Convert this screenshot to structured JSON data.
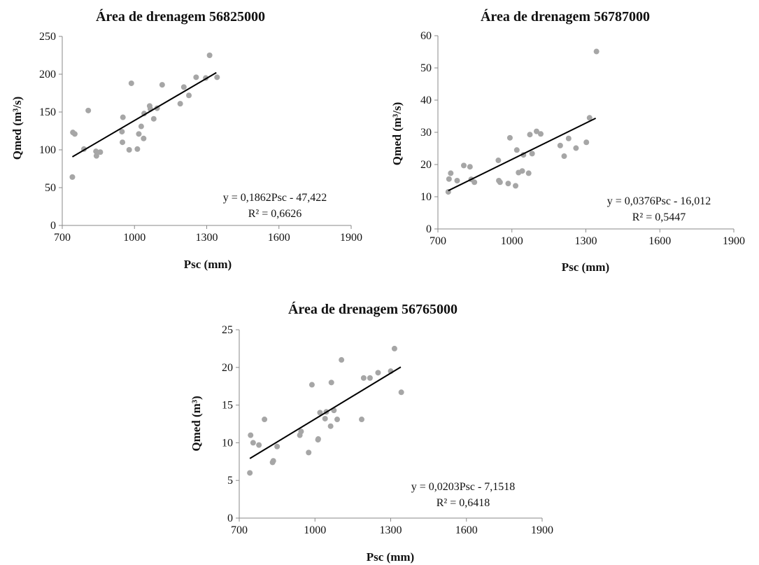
{
  "chart_data": [
    {
      "type": "scatter",
      "title": "Área de drenagem 56825000",
      "xlabel": "Psc (mm)",
      "ylabel": "Qmed (m³/s)",
      "xlim": [
        700,
        1900
      ],
      "ylim": [
        0,
        250
      ],
      "xticks": [
        "700",
        "1000",
        "1300",
        "1600",
        "1900"
      ],
      "yticks": [
        "0",
        "50",
        "100",
        "150",
        "200",
        "250"
      ],
      "grid": false,
      "trendline": {
        "slope": 0.1862,
        "intercept": -47.422,
        "x_range": [
          742,
          1340
        ]
      },
      "equation": "y = 0,1862Psc - 47,422",
      "r2": "R² = 0,6626",
      "points": [
        [
          742,
          64
        ],
        [
          744,
          123
        ],
        [
          752,
          121
        ],
        [
          790,
          101
        ],
        [
          808,
          152
        ],
        [
          840,
          98
        ],
        [
          842,
          92
        ],
        [
          858,
          97
        ],
        [
          948,
          124
        ],
        [
          950,
          110
        ],
        [
          952,
          143
        ],
        [
          978,
          100
        ],
        [
          987,
          188
        ],
        [
          1012,
          101
        ],
        [
          1018,
          121
        ],
        [
          1028,
          131
        ],
        [
          1038,
          115
        ],
        [
          1040,
          148
        ],
        [
          1063,
          158
        ],
        [
          1066,
          154
        ],
        [
          1080,
          141
        ],
        [
          1094,
          155
        ],
        [
          1115,
          186
        ],
        [
          1190,
          161
        ],
        [
          1205,
          183
        ],
        [
          1226,
          172
        ],
        [
          1256,
          196
        ],
        [
          1296,
          195
        ],
        [
          1312,
          225
        ],
        [
          1343,
          196
        ]
      ]
    },
    {
      "type": "scatter",
      "title": "Área de drenagem 56787000",
      "xlabel": "Psc (mm)",
      "ylabel": "Qmed (m³/s)",
      "xlim": [
        700,
        1900
      ],
      "ylim": [
        0,
        60
      ],
      "xticks": [
        "700",
        "1000",
        "1300",
        "1600",
        "1900"
      ],
      "yticks": [
        "0",
        "10",
        "20",
        "30",
        "40",
        "50",
        "60"
      ],
      "grid": false,
      "trendline": {
        "slope": 0.0376,
        "intercept": -16.012,
        "x_range": [
          742,
          1340
        ]
      },
      "equation": "y = 0,0376Psc - 16,012",
      "r2": "R² = 0,5447",
      "points": [
        [
          742,
          11.5
        ],
        [
          745,
          15.5
        ],
        [
          752,
          17.3
        ],
        [
          778,
          15
        ],
        [
          805,
          19.7
        ],
        [
          830,
          19.3
        ],
        [
          835,
          15.4
        ],
        [
          848,
          14.5
        ],
        [
          945,
          21.3
        ],
        [
          947,
          15
        ],
        [
          952,
          14.5
        ],
        [
          985,
          14.1
        ],
        [
          992,
          28.3
        ],
        [
          1015,
          13.4
        ],
        [
          1020,
          24.5
        ],
        [
          1027,
          17.5
        ],
        [
          1042,
          18
        ],
        [
          1047,
          23
        ],
        [
          1068,
          17.3
        ],
        [
          1073,
          29.3
        ],
        [
          1082,
          23.4
        ],
        [
          1100,
          30.3
        ],
        [
          1117,
          29.5
        ],
        [
          1196,
          25.9
        ],
        [
          1212,
          22.6
        ],
        [
          1230,
          28.1
        ],
        [
          1260,
          25.1
        ],
        [
          1302,
          26.9
        ],
        [
          1315,
          34.5
        ],
        [
          1343,
          55.1
        ]
      ]
    },
    {
      "type": "scatter",
      "title": "Área de drenagem 56765000",
      "xlabel": "Psc (mm)",
      "ylabel": "Qmed (m³)",
      "xlim": [
        700,
        1900
      ],
      "ylim": [
        0,
        25
      ],
      "xticks": [
        "700",
        "1000",
        "1300",
        "1600",
        "1900"
      ],
      "yticks": [
        "0",
        "5",
        "10",
        "15",
        "20",
        "25"
      ],
      "grid": false,
      "trendline": {
        "slope": 0.0203,
        "intercept": -7.1518,
        "x_range": [
          742,
          1340
        ]
      },
      "equation": "y = 0,0203Psc - 7,1518",
      "r2": "R² = 0,6418",
      "points": [
        [
          742,
          6
        ],
        [
          745,
          11
        ],
        [
          755,
          10
        ],
        [
          778,
          9.7
        ],
        [
          800,
          13.1
        ],
        [
          832,
          7.4
        ],
        [
          835,
          7.6
        ],
        [
          850,
          9.5
        ],
        [
          940,
          11
        ],
        [
          945,
          11.5
        ],
        [
          975,
          8.7
        ],
        [
          988,
          17.7
        ],
        [
          1012,
          10.4
        ],
        [
          1013,
          10.5
        ],
        [
          1020,
          14
        ],
        [
          1040,
          13.2
        ],
        [
          1045,
          14.1
        ],
        [
          1062,
          12.2
        ],
        [
          1065,
          18
        ],
        [
          1075,
          14.3
        ],
        [
          1088,
          13.1
        ],
        [
          1105,
          21
        ],
        [
          1185,
          13.1
        ],
        [
          1193,
          18.6
        ],
        [
          1218,
          18.6
        ],
        [
          1250,
          19.3
        ],
        [
          1300,
          19.5
        ],
        [
          1315,
          22.5
        ],
        [
          1342,
          16.7
        ]
      ]
    }
  ]
}
